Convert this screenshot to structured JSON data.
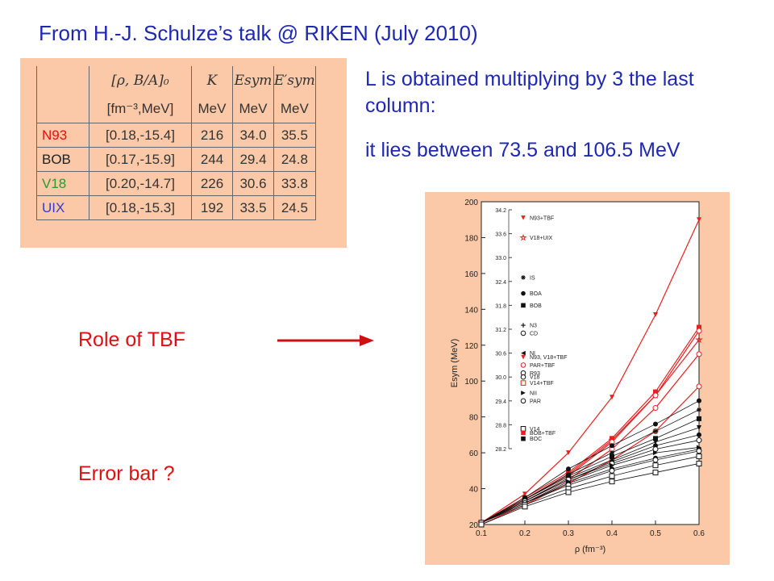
{
  "slide": {
    "title": "From H.-J. Schulze’s talk @ RIKEN (July 2010)",
    "note_line1": "L is obtained multiplying by 3 the last column:",
    "note_line2": "it lies between 73.5 and 106.5 MeV",
    "label_tbf": "Role of TBF",
    "label_error": "Error bar ?"
  },
  "table": {
    "header_row1": [
      "",
      "[ρ, B/A]₀",
      "K",
      "Esym",
      "E′sym"
    ],
    "header_row2": [
      "",
      "[fm⁻³,MeV]",
      "MeV",
      "MeV",
      "MeV"
    ],
    "rows": [
      {
        "name": "N93",
        "color": "#e01010",
        "cells": [
          "[0.18,-15.4]",
          "216",
          "34.0",
          "35.5"
        ]
      },
      {
        "name": "BOB",
        "color": "#222222",
        "cells": [
          "[0.17,-15.9]",
          "244",
          "29.4",
          "24.8"
        ]
      },
      {
        "name": "V18",
        "color": "#2a9a2a",
        "cells": [
          "[0.20,-14.7]",
          "226",
          "30.6",
          "33.8"
        ]
      },
      {
        "name": "UIX",
        "color": "#3a3ad0",
        "cells": [
          "[0.18,-15.3]",
          "192",
          "33.5",
          "24.5"
        ]
      }
    ]
  },
  "chart_data": {
    "type": "line",
    "xlabel": "ρ (fm⁻³)",
    "ylabel": "Esym (MeV)",
    "xlim": [
      0.1,
      0.6
    ],
    "ylim": [
      20,
      200
    ],
    "xticks": [
      "0.1",
      "0.2",
      "0.3",
      "0.4",
      "0.5",
      "0.6"
    ],
    "yticks": [
      "20",
      "40",
      "60",
      "80",
      "100",
      "120",
      "140",
      "160",
      "180",
      "200"
    ],
    "x": [
      0.1,
      0.2,
      0.3,
      0.4,
      0.5,
      0.6
    ],
    "series": [
      {
        "name": "N93+TBF",
        "marker": "triangle-down-filled",
        "color": "#e82020",
        "values": [
          21,
          37,
          60,
          91,
          137,
          190
        ]
      },
      {
        "name": "V18+UIX",
        "marker": "star-open",
        "color": "#e82020",
        "values": [
          21,
          34,
          48,
          67,
          92,
          123
        ]
      },
      {
        "values": [
          21,
          35,
          49,
          68,
          94,
          130
        ],
        "color": "#e82020",
        "marker": "square-filled"
      },
      {
        "values": [
          21,
          34,
          47,
          66,
          92,
          128
        ],
        "color": "#e82020",
        "marker": "circle-open"
      },
      {
        "values": [
          21,
          33,
          45,
          62,
          85,
          115
        ],
        "color": "#e82020",
        "marker": "circle-open"
      },
      {
        "values": [
          20,
          31,
          43,
          56,
          72,
          97
        ],
        "color": "#e82020",
        "marker": "circle-open"
      },
      {
        "values": [
          21,
          35,
          51,
          64,
          76,
          89
        ],
        "color": "#111111",
        "marker": "circle-filled"
      },
      {
        "values": [
          21,
          34,
          48,
          60,
          72,
          84
        ],
        "color": "#111111",
        "marker": "star"
      },
      {
        "values": [
          21,
          34,
          47,
          58,
          68,
          79
        ],
        "color": "#111111",
        "marker": "square-filled"
      },
      {
        "values": [
          21,
          33,
          46,
          56,
          66,
          74
        ],
        "color": "#111111",
        "marker": "triangle-down-filled"
      },
      {
        "values": [
          21,
          33,
          45,
          55,
          64,
          70
        ],
        "color": "#111111",
        "marker": "circle-filled"
      },
      {
        "values": [
          21,
          33,
          45,
          54,
          62,
          67
        ],
        "color": "#111111",
        "marker": "circle-open"
      },
      {
        "values": [
          21,
          32,
          44,
          53,
          60,
          63
        ],
        "color": "#111111",
        "marker": "triangle-right-filled"
      },
      {
        "values": [
          21,
          32,
          43,
          51,
          57,
          62
        ],
        "color": "#111111",
        "marker": "circle-filled"
      },
      {
        "values": [
          21,
          32,
          42,
          50,
          56,
          61
        ],
        "color": "#111111",
        "marker": "circle-open"
      },
      {
        "values": [
          21,
          31,
          40,
          47,
          53,
          58
        ],
        "color": "#111111",
        "marker": "square-open"
      },
      {
        "values": [
          20,
          30,
          38,
          44,
          49,
          54
        ],
        "color": "#111111",
        "marker": "square-open"
      }
    ],
    "inset": {
      "yticks": [
        "34.2",
        "33.6",
        "33.0",
        "32.4",
        "31.8",
        "31.2",
        "30.6",
        "30.0",
        "29.4",
        "28.8",
        "28.2"
      ],
      "ylim": [
        28.2,
        34.2
      ],
      "entries": [
        {
          "label": "N93+TBF",
          "value": 34.0,
          "marker": "triangle-down-filled",
          "color": "#e82020"
        },
        {
          "label": "V18+UIX",
          "value": 33.5,
          "marker": "star-open",
          "color": "#e82020"
        },
        {
          "label": "IS",
          "value": 32.5,
          "marker": "asterisk",
          "color": "#111111"
        },
        {
          "label": "BOA",
          "value": 32.1,
          "marker": "circle-filled",
          "color": "#111111"
        },
        {
          "label": "BOB",
          "value": 31.8,
          "marker": "square-filled",
          "color": "#111111"
        },
        {
          "label": "N3",
          "value": 31.3,
          "marker": "plus",
          "color": "#111111"
        },
        {
          "label": "CD",
          "value": 31.1,
          "marker": "circle-open",
          "color": "#111111"
        },
        {
          "label": "NI",
          "value": 30.6,
          "marker": "triangle-left-filled",
          "color": "#111111"
        },
        {
          "label": "N93, V18+TBF",
          "value": 30.5,
          "marker": "triangle-down-filled",
          "color": "#e82020"
        },
        {
          "label": "PAR+TBF",
          "value": 30.3,
          "marker": "circle-open",
          "color": "#e82020"
        },
        {
          "label": "R93",
          "value": 30.1,
          "marker": "circle-open",
          "color": "#111111"
        },
        {
          "label": "V18",
          "value": 30.0,
          "marker": "circle-open",
          "color": "#111111"
        },
        {
          "label": "V14+TBF",
          "value": 29.85,
          "marker": "square-open",
          "color": "#e82020"
        },
        {
          "label": "NII",
          "value": 29.6,
          "marker": "triangle-right-filled",
          "color": "#111111"
        },
        {
          "label": "PAR",
          "value": 29.4,
          "marker": "circle-open",
          "color": "#111111"
        },
        {
          "label": "V14",
          "value": 28.7,
          "marker": "square-open",
          "color": "#111111"
        },
        {
          "label": "BOB+TBF",
          "value": 28.6,
          "marker": "square-filled",
          "color": "#e82020"
        },
        {
          "label": "BOC",
          "value": 28.45,
          "marker": "square-filled",
          "color": "#111111"
        }
      ]
    }
  }
}
